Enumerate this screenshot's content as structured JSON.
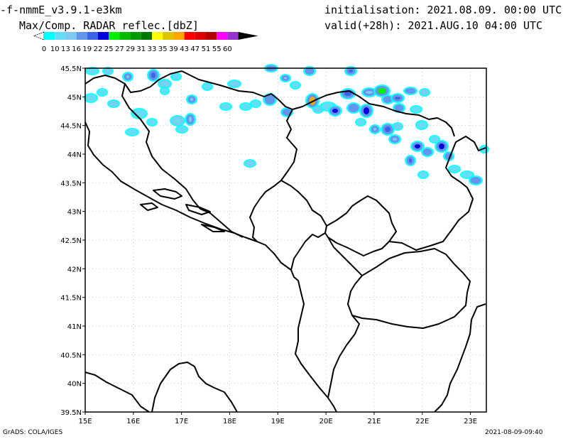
{
  "header": {
    "model": "-f-nmmE_v3.9.1-e3km",
    "field": "Max/Comp. RADAR reflec.[dbZ]",
    "init": "initialisation: 2021.08.09. 00:00 UTC",
    "valid": "valid(+28h): 2021.AUG.10 04:00 UTC"
  },
  "legend": {
    "ticks": [
      "0",
      "10",
      "13",
      "16",
      "19",
      "22",
      "25",
      "27",
      "29",
      "31",
      "33",
      "35",
      "39",
      "43",
      "47",
      "51",
      "55",
      "60"
    ],
    "colors": [
      "#00ffff",
      "#66ddf5",
      "#7fc8ee",
      "#6495ed",
      "#3a63e8",
      "#0000dd",
      "#00ee00",
      "#00bb00",
      "#009900",
      "#007700",
      "#ffff00",
      "#ddc400",
      "#ffa500",
      "#ff0000",
      "#dd0000",
      "#b30000",
      "#ff00ff",
      "#9932cc",
      "#000000"
    ]
  },
  "map": {
    "x_ticks": [
      "15E",
      "16E",
      "17E",
      "18E",
      "19E",
      "20E",
      "21E",
      "22E",
      "23E"
    ],
    "y_ticks": [
      "45.5N",
      "45N",
      "44.5N",
      "44N",
      "43.5N",
      "43N",
      "42.5N",
      "42N",
      "41.5N",
      "41N",
      "40.5N",
      "40N",
      "39.5N"
    ],
    "lon_range": [
      15,
      23.33
    ],
    "lat_range": [
      39.5,
      45.5
    ],
    "grid": true
  },
  "footer": {
    "left": "GrADS: COLA/IGES",
    "right": "2021-08-09-09:40"
  }
}
